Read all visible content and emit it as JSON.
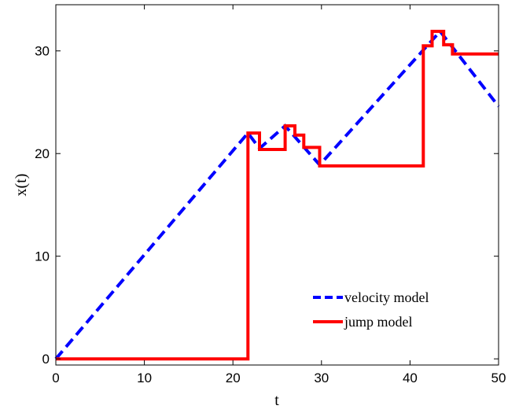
{
  "chart_data": {
    "type": "line",
    "xlabel": "t",
    "ylabel": "x(t)",
    "xlim": [
      0,
      50
    ],
    "ylim": [
      -0.6,
      34.5
    ],
    "xticks": [
      0,
      10,
      20,
      30,
      40,
      50
    ],
    "yticks": [
      0,
      10,
      20,
      30
    ],
    "grid": false,
    "legend_position": "bottom-right",
    "series": [
      {
        "name": "velocity model",
        "color": "#0000ff",
        "style": "dashed",
        "x": [
          0,
          21.7,
          23.0,
          25.9,
          29.8,
          43.4,
          50
        ],
        "y": [
          0,
          22.0,
          20.5,
          22.7,
          18.9,
          31.9,
          24.6
        ]
      },
      {
        "name": "jump model",
        "color": "#ff0000",
        "style": "solid-step",
        "x": [
          0,
          21.7,
          21.7,
          23.0,
          23.0,
          25.9,
          25.9,
          27.0,
          27.0,
          28.0,
          28.0,
          29.8,
          29.8,
          41.5,
          41.5,
          42.5,
          42.5,
          43.8,
          43.8,
          44.8,
          44.8,
          50
        ],
        "y": [
          0,
          0,
          22.0,
          22.0,
          20.4,
          20.4,
          22.7,
          22.7,
          21.8,
          21.8,
          20.6,
          20.6,
          18.8,
          18.8,
          30.5,
          30.5,
          31.9,
          31.9,
          30.6,
          30.6,
          29.7,
          29.7
        ]
      }
    ]
  }
}
